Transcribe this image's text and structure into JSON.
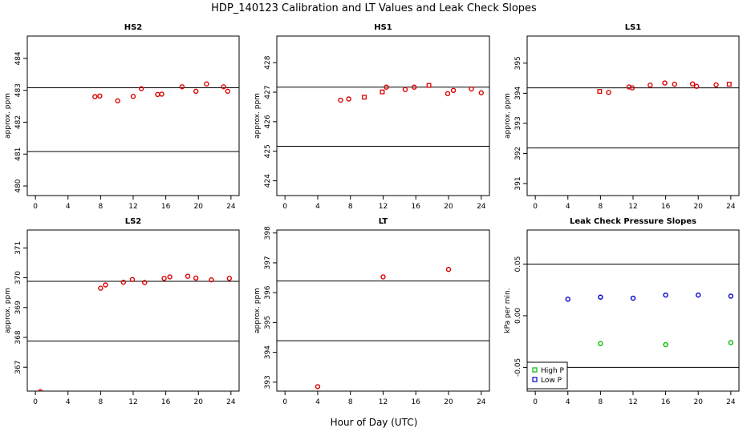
{
  "figure": {
    "title": "HDP_140123  Calibration and LT Values and Leak Check Slopes",
    "xlabel": "Hour of Day (UTC)"
  },
  "chart_data": [
    {
      "id": "hs2",
      "type": "scatter",
      "title": "HS2",
      "ylabel": "approx. ppm",
      "xlim": [
        -1,
        25
      ],
      "ylim": [
        479.7,
        484.7
      ],
      "xticks": [
        0,
        4,
        8,
        12,
        16,
        20,
        24
      ],
      "yticks": [
        480,
        481,
        482,
        483,
        484
      ],
      "hlines": [
        483.08,
        481.08
      ],
      "series": [
        {
          "name": "values",
          "color": "#dd0000",
          "marker": "circle",
          "x": [
            7.3,
            7.9,
            10.1,
            12.0,
            13.0,
            15.0,
            15.5,
            18.0,
            19.7,
            21.0,
            23.1,
            23.6
          ],
          "y": [
            482.8,
            482.82,
            482.67,
            482.81,
            483.05,
            482.87,
            482.88,
            483.11,
            482.97,
            483.2,
            483.11,
            482.97
          ]
        }
      ]
    },
    {
      "id": "hs1",
      "type": "scatter",
      "title": "HS1",
      "ylabel": "approx. ppm",
      "xlim": [
        -1,
        25
      ],
      "ylim": [
        423.5,
        428.9
      ],
      "xticks": [
        0,
        4,
        8,
        12,
        16,
        20,
        24
      ],
      "yticks": [
        424,
        425,
        426,
        427,
        428
      ],
      "hlines": [
        427.17,
        425.17
      ],
      "series": [
        {
          "name": "values",
          "color": "#dd0000",
          "marker": "circle",
          "x": [
            6.8,
            7.8,
            12.4,
            14.7,
            15.8,
            19.9,
            20.6,
            22.8,
            24.0
          ],
          "y": [
            426.73,
            426.77,
            427.17,
            427.09,
            427.17,
            426.95,
            427.06,
            427.11,
            426.98
          ]
        },
        {
          "name": "values-square",
          "color": "#dd0000",
          "marker": "square",
          "x": [
            9.7,
            11.9,
            17.6
          ],
          "y": [
            426.83,
            427.01,
            427.23
          ]
        }
      ]
    },
    {
      "id": "ls1",
      "type": "scatter",
      "title": "LS1",
      "ylabel": "approx. ppm",
      "xlim": [
        -1,
        25
      ],
      "ylim": [
        390.6,
        395.9
      ],
      "xticks": [
        0,
        4,
        8,
        12,
        16,
        20,
        24
      ],
      "yticks": [
        391,
        392,
        393,
        394,
        395
      ],
      "hlines": [
        394.18,
        392.18
      ],
      "series": [
        {
          "name": "values",
          "color": "#dd0000",
          "marker": "circle",
          "x": [
            9.0,
            11.5,
            11.9,
            14.1,
            15.9,
            17.1,
            19.3,
            19.8,
            22.2
          ],
          "y": [
            394.03,
            394.21,
            394.18,
            394.27,
            394.34,
            394.3,
            394.31,
            394.23,
            394.28
          ]
        },
        {
          "name": "values-square",
          "color": "#dd0000",
          "marker": "square",
          "x": [
            7.9,
            23.8
          ],
          "y": [
            394.06,
            394.3
          ]
        }
      ]
    },
    {
      "id": "ls2",
      "type": "scatter",
      "title": "LS2",
      "ylabel": "approx. ppm",
      "xlim": [
        -1,
        25
      ],
      "ylim": [
        366.2,
        371.6
      ],
      "xticks": [
        0,
        4,
        8,
        12,
        16,
        20,
        24
      ],
      "yticks": [
        367,
        368,
        369,
        370,
        371
      ],
      "hlines": [
        369.88,
        367.88
      ],
      "series": [
        {
          "name": "values",
          "color": "#dd0000",
          "marker": "circle",
          "x": [
            8.0,
            8.6,
            10.8,
            11.9,
            13.4,
            15.8,
            16.5,
            18.7,
            19.7,
            21.6,
            23.8,
            0.6
          ],
          "y": [
            369.65,
            369.76,
            369.85,
            369.94,
            369.84,
            369.98,
            370.03,
            370.05,
            369.99,
            369.93,
            369.98,
            366.18
          ]
        }
      ]
    },
    {
      "id": "lt",
      "type": "scatter",
      "title": "LT",
      "ylabel": "approx. ppm",
      "xlim": [
        -1,
        25
      ],
      "ylim": [
        392.7,
        398.1
      ],
      "xticks": [
        0,
        4,
        8,
        12,
        16,
        20,
        24
      ],
      "yticks": [
        393,
        394,
        395,
        396,
        397,
        398
      ],
      "hlines": [
        396.39,
        394.39
      ],
      "series": [
        {
          "name": "values",
          "color": "#dd0000",
          "marker": "circle",
          "x": [
            4.0,
            12.0,
            20.0
          ],
          "y": [
            392.85,
            396.53,
            396.78
          ]
        }
      ]
    },
    {
      "id": "leak",
      "type": "scatter",
      "title": "Leak Check Pressure Slopes",
      "ylabel": "kPa per min.",
      "xlim": [
        -1,
        25
      ],
      "ylim": [
        -0.073,
        0.083
      ],
      "xticks": [
        0,
        4,
        8,
        12,
        16,
        20,
        24
      ],
      "yticks": [
        -0.05,
        0.0,
        0.05
      ],
      "ytick_labels": [
        "-0.05",
        "0.00",
        "0.05"
      ],
      "hlines": [
        0.05,
        -0.05
      ],
      "legend": {
        "position": "bottom-left"
      },
      "series": [
        {
          "name": "High P",
          "color": "#00bb00",
          "marker": "circle",
          "x": [
            8.0,
            16.0,
            24.0
          ],
          "y": [
            -0.027,
            -0.028,
            -0.026
          ]
        },
        {
          "name": "Low P",
          "color": "#0000cc",
          "marker": "circle",
          "x": [
            4.0,
            8.0,
            12.0,
            16.0,
            20.0,
            24.0
          ],
          "y": [
            0.016,
            0.018,
            0.017,
            0.02,
            0.02,
            0.019
          ]
        }
      ]
    }
  ]
}
